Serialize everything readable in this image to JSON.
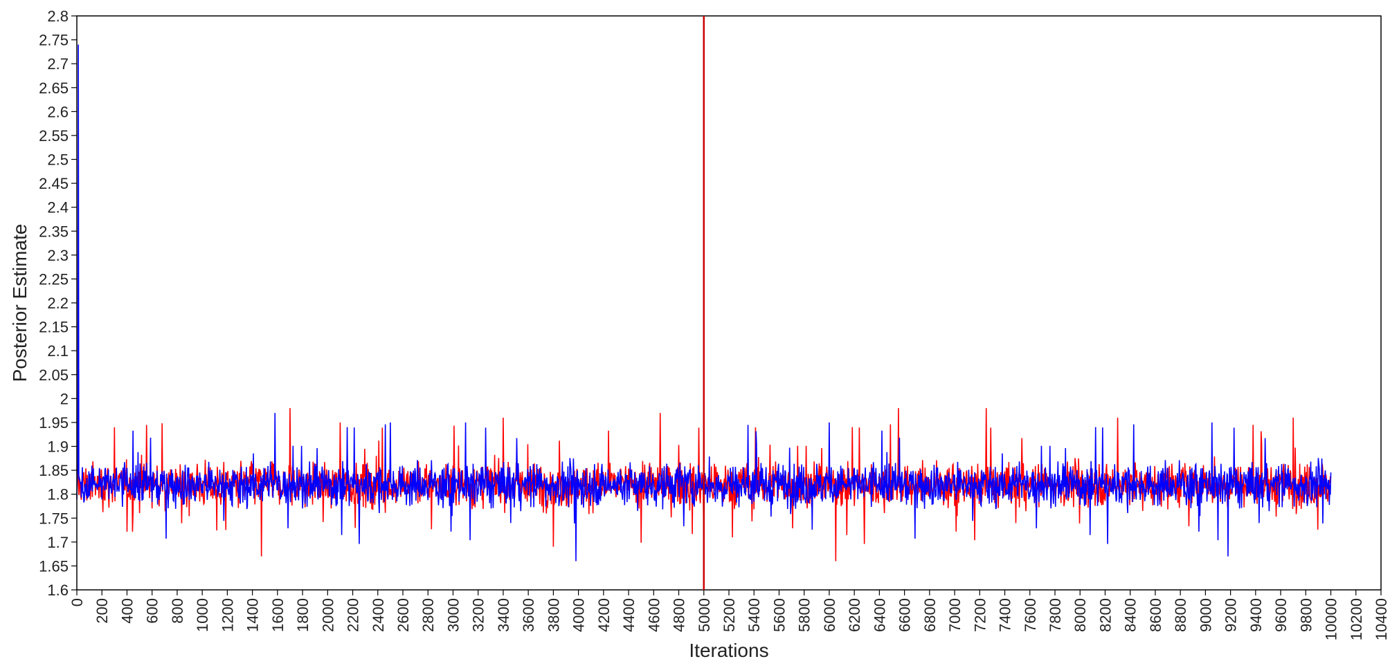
{
  "chart_data": {
    "type": "line",
    "xlabel": "Iterations",
    "ylabel": "Posterior Estimate",
    "xlim": [
      0,
      10400
    ],
    "ylim": [
      1.6,
      2.8
    ],
    "x_ticks": [
      0,
      200,
      400,
      600,
      800,
      1000,
      1200,
      1400,
      1600,
      1800,
      2000,
      2200,
      2400,
      2600,
      2800,
      3000,
      3200,
      3400,
      3600,
      3800,
      4000,
      4200,
      4400,
      4600,
      4800,
      5000,
      5200,
      5400,
      5600,
      5800,
      6000,
      6200,
      6400,
      6600,
      6800,
      7000,
      7200,
      7400,
      7600,
      7800,
      8000,
      8200,
      8400,
      8600,
      8800,
      9000,
      9200,
      9400,
      9600,
      9800,
      10000,
      10200,
      10400
    ],
    "y_ticks": [
      "1.6",
      "1.65",
      "1.7",
      "1.75",
      "1.8",
      "1.85",
      "1.9",
      "1.95",
      "2",
      "2.05",
      "2.1",
      "2.15",
      "2.2",
      "2.25",
      "2.3",
      "2.35",
      "2.4",
      "2.45",
      "2.5",
      "2.55",
      "2.6",
      "2.65",
      "2.7",
      "2.75",
      "2.8"
    ],
    "grid": false,
    "burn_in_marker": {
      "x": 5000,
      "color": "#cc0000"
    },
    "series": [
      {
        "color": "#ff0000",
        "mean": 1.82,
        "band": [
          1.77,
          1.88
        ],
        "spikes": [
          {
            "x": 300,
            "y": 1.94
          },
          {
            "x": 1470,
            "y": 1.67
          },
          {
            "x": 1700,
            "y": 1.98
          },
          {
            "x": 2100,
            "y": 1.95
          },
          {
            "x": 3400,
            "y": 1.96
          },
          {
            "x": 3800,
            "y": 1.69
          },
          {
            "x": 4650,
            "y": 1.97
          },
          {
            "x": 5000,
            "y": 1.68
          },
          {
            "x": 6050,
            "y": 1.66
          },
          {
            "x": 6550,
            "y": 1.98
          },
          {
            "x": 7250,
            "y": 1.98
          },
          {
            "x": 8300,
            "y": 1.96
          },
          {
            "x": 9700,
            "y": 1.96
          }
        ]
      },
      {
        "color": "#0000ff",
        "mean": 1.82,
        "band": [
          1.77,
          1.88
        ],
        "spikes": [
          {
            "x": 10,
            "y": 2.74
          },
          {
            "x": 1580,
            "y": 1.97
          },
          {
            "x": 2500,
            "y": 1.95
          },
          {
            "x": 3100,
            "y": 1.95
          },
          {
            "x": 3980,
            "y": 1.66
          },
          {
            "x": 6000,
            "y": 1.95
          },
          {
            "x": 9050,
            "y": 1.95
          },
          {
            "x": 9180,
            "y": 1.67
          }
        ]
      }
    ],
    "n_iterations": 10000
  }
}
